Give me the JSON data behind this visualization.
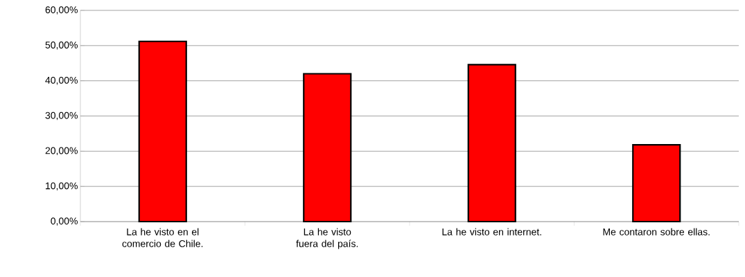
{
  "chart_data": {
    "type": "bar",
    "categories": [
      "La he visto en el comercio de Chile.",
      "La he visto fuera del país.",
      "La he visto en internet.",
      "Me contaron sobre ellas."
    ],
    "values": [
      51.2,
      42.0,
      44.6,
      21.8
    ],
    "color": "#ff0000",
    "ylim": [
      0,
      60
    ],
    "yticks": [
      {
        "value": 0,
        "label": "0,00%"
      },
      {
        "value": 10,
        "label": "10,00%"
      },
      {
        "value": 20,
        "label": "20,00%"
      },
      {
        "value": 30,
        "label": "30,00%"
      },
      {
        "value": 40,
        "label": "40,00%"
      },
      {
        "value": 50,
        "label": "50,00%"
      },
      {
        "value": 60,
        "label": "60,00%"
      }
    ],
    "grid": "y"
  }
}
